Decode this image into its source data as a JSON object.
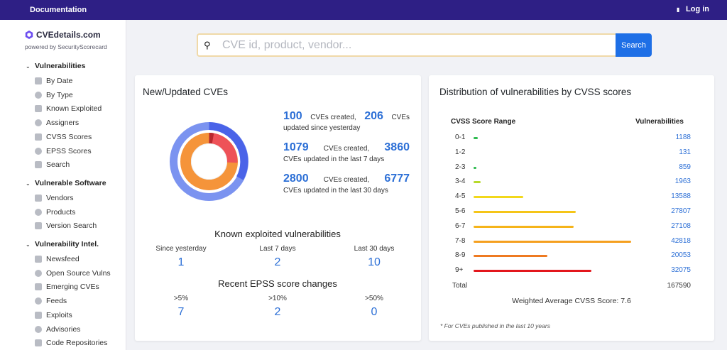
{
  "topbar": {
    "documentation": "Documentation",
    "login": "Log in"
  },
  "sidebar": {
    "brand": "CVEdetails.com",
    "powered": "powered by SecurityScorecard",
    "sections": [
      {
        "label": "Vulnerabilities",
        "items": [
          "By Date",
          "By Type",
          "Known Exploited",
          "Assigners",
          "CVSS Scores",
          "EPSS Scores",
          "Search"
        ]
      },
      {
        "label": "Vulnerable Software",
        "items": [
          "Vendors",
          "Products",
          "Version Search"
        ]
      },
      {
        "label": "Vulnerability Intel.",
        "items": [
          "Newsfeed",
          "Open Source Vulns",
          "Emerging CVEs",
          "Feeds",
          "Exploits",
          "Advisories",
          "Code Repositories"
        ]
      }
    ]
  },
  "search": {
    "placeholder": "CVE id, product, vendor...",
    "button": "Search"
  },
  "new_cves": {
    "title": "New/Updated CVEs",
    "created_label": "CVEs created,",
    "updated_label": "CVEs",
    "stats": [
      {
        "created": "100",
        "updated": "206",
        "suffix": "updated since yesterday"
      },
      {
        "created": "1079",
        "updated": "3860",
        "suffix": "CVEs updated in the last 7 days"
      },
      {
        "created": "2800",
        "updated": "6777",
        "suffix": "CVEs updated in the last 30 days"
      }
    ],
    "donut_colors": {
      "outer": "#7b93f0",
      "outer_dark": "#4a63e8",
      "inner_orange": "#f5943a",
      "inner_red": "#ee5258",
      "inner_darkred": "#b8282e"
    }
  },
  "known": {
    "title": "Known exploited vulnerabilities",
    "cols": [
      {
        "label": "Since yesterday",
        "value": "1"
      },
      {
        "label": "Last 7 days",
        "value": "2"
      },
      {
        "label": "Last 30 days",
        "value": "10"
      }
    ]
  },
  "epss": {
    "title": "Recent EPSS score changes",
    "cols": [
      {
        "label": ">5%",
        "value": "7"
      },
      {
        "label": ">10%",
        "value": "2"
      },
      {
        "label": ">50%",
        "value": "0"
      }
    ]
  },
  "dist": {
    "title": "Distribution of vulnerabilities by CVSS scores",
    "head_range": "CVSS Score Range",
    "head_vulns": "Vulnerabilities",
    "total_label": "Total",
    "total_value": "167590",
    "weighted": "Weighted Average CVSS Score: 7.6",
    "footnote": "* For CVEs published in the last 10 years"
  },
  "chart_data": {
    "type": "bar",
    "categories": [
      "0-1",
      "1-2",
      "2-3",
      "3-4",
      "4-5",
      "5-6",
      "6-7",
      "7-8",
      "8-9",
      "9+"
    ],
    "values": [
      1188,
      131,
      859,
      1963,
      13588,
      27807,
      27108,
      42818,
      20053,
      32075
    ],
    "colors": [
      "#2dbb4f",
      "#2dbb4f",
      "#2dbb4f",
      "#b7d92b",
      "#f2d81b",
      "#f5c518",
      "#f5b41a",
      "#f5a01f",
      "#ee7a21",
      "#e3171c"
    ],
    "title": "Distribution of vulnerabilities by CVSS scores",
    "xlabel": "CVSS Score Range",
    "ylabel": "Vulnerabilities"
  }
}
